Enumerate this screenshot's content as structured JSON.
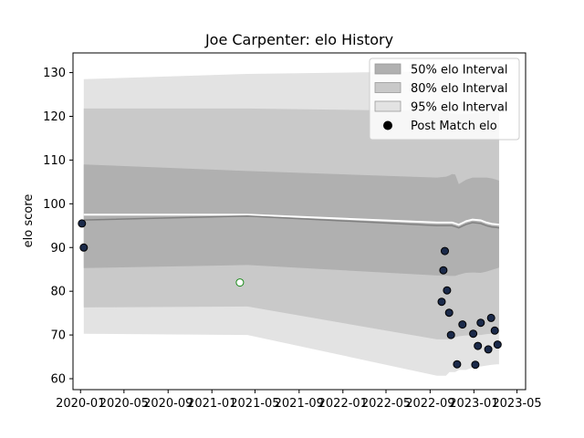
{
  "chart_data": {
    "type": "line",
    "title": "Joe Carpenter: elo History",
    "xlabel": "",
    "ylabel": "elo score",
    "xlim": [
      "2019-12-11",
      "2023-05-25"
    ],
    "ylim": [
      57.5,
      134.5
    ],
    "x_ticks": [
      "2020-01",
      "2020-05",
      "2020-09",
      "2021-01",
      "2021-05",
      "2021-09",
      "2022-01",
      "2022-05",
      "2022-09",
      "2023-01",
      "2023-05"
    ],
    "y_ticks": [
      60,
      70,
      80,
      90,
      100,
      110,
      120,
      130
    ],
    "grid": false,
    "legend": {
      "placement": "top-right",
      "entries": [
        {
          "label": "50% elo Interval",
          "color": "#b0b0b0"
        },
        {
          "label": "80% elo Interval",
          "color": "#c9c9c9"
        },
        {
          "label": "95% elo Interval",
          "color": "#e3e3e3"
        },
        {
          "label": "Post Match elo",
          "color": "#000000"
        }
      ]
    },
    "band_x": [
      "2020-01-10",
      "2021-04-10",
      "2022-09-20",
      "2022-10-15",
      "2022-10-25",
      "2022-11-01",
      "2022-11-10",
      "2022-11-20",
      "2022-12-10",
      "2022-12-28",
      "2023-01-20",
      "2023-02-05",
      "2023-02-20",
      "2023-03-05",
      "2023-03-12"
    ],
    "series": [
      {
        "role": "mean",
        "color": "#808080",
        "values": [
          96.3,
          97.2,
          95.0,
          95.0,
          95.0,
          95.0,
          94.8,
          94.5,
          95.3,
          95.7,
          95.5,
          95.0,
          94.7,
          94.6,
          94.5
        ]
      },
      {
        "role": "upper-offset",
        "color": "#ffffff",
        "values": [
          97.5,
          97.5,
          95.7,
          95.7,
          95.7,
          95.7,
          95.5,
          95.2,
          96.0,
          96.4,
          96.2,
          95.7,
          95.4,
          95.3,
          95.2
        ]
      },
      {
        "role": "band50-upper",
        "color": "#b0b0b0",
        "values": [
          109.0,
          107.5,
          106.0,
          106.2,
          106.5,
          106.8,
          106.7,
          104.5,
          105.5,
          106.0,
          106.0,
          106.0,
          105.8,
          105.5,
          105.3
        ]
      },
      {
        "role": "band50-lower",
        "color": "#b0b0b0",
        "values": [
          85.3,
          86.0,
          83.6,
          83.6,
          83.5,
          83.5,
          83.5,
          83.8,
          84.2,
          84.3,
          84.2,
          84.5,
          84.9,
          85.2,
          85.4
        ]
      },
      {
        "role": "band80-upper",
        "color": "#c9c9c9",
        "values": [
          121.8,
          121.8,
          121.2,
          121.0,
          120.8,
          120.6,
          120.5,
          120.5,
          120.5,
          120.6,
          120.8,
          121.0,
          121.3,
          121.4,
          121.5
        ]
      },
      {
        "role": "band80-lower",
        "color": "#c9c9c9",
        "values": [
          76.3,
          76.5,
          69.0,
          69.0,
          69.0,
          69.2,
          69.5,
          69.7,
          69.9,
          70.0,
          70.0,
          70.2,
          70.3,
          70.4,
          70.5
        ]
      },
      {
        "role": "band95-upper",
        "color": "#e3e3e3",
        "values": [
          128.5,
          129.7,
          130.3,
          130.3,
          130.3,
          130.3,
          130.3,
          130.3,
          130.3,
          130.3,
          130.3,
          130.3,
          130.3,
          130.3,
          130.3
        ]
      },
      {
        "role": "band95-lower",
        "color": "#e3e3e3",
        "values": [
          70.3,
          70.0,
          60.7,
          60.7,
          61.5,
          61.5,
          61.5,
          62.0,
          62.0,
          62.5,
          62.8,
          63.0,
          63.2,
          63.3,
          63.3
        ]
      }
    ],
    "points": [
      {
        "x": "2020-01-05",
        "y": 95.5,
        "fill": "#1b2a4a",
        "stroke": "#000000"
      },
      {
        "x": "2020-01-10",
        "y": 90.0,
        "fill": "#1b2a4a",
        "stroke": "#000000"
      },
      {
        "x": "2021-03-20",
        "y": 82.0,
        "fill": "#ffffff",
        "stroke": "#1a8a1a"
      },
      {
        "x": "2022-10-03",
        "y": 77.6,
        "fill": "#1b2a4a",
        "stroke": "#000000"
      },
      {
        "x": "2022-10-08",
        "y": 84.8,
        "fill": "#1b2a4a",
        "stroke": "#000000"
      },
      {
        "x": "2022-10-12",
        "y": 89.2,
        "fill": "#1b2a4a",
        "stroke": "#000000"
      },
      {
        "x": "2022-10-18",
        "y": 80.2,
        "fill": "#1b2a4a",
        "stroke": "#000000"
      },
      {
        "x": "2022-10-24",
        "y": 75.1,
        "fill": "#1b2a4a",
        "stroke": "#000000"
      },
      {
        "x": "2022-10-29",
        "y": 70.0,
        "fill": "#1b2a4a",
        "stroke": "#000000"
      },
      {
        "x": "2022-11-15",
        "y": 63.3,
        "fill": "#1b2a4a",
        "stroke": "#000000"
      },
      {
        "x": "2022-11-30",
        "y": 72.4,
        "fill": "#1b2a4a",
        "stroke": "#000000"
      },
      {
        "x": "2022-12-30",
        "y": 70.3,
        "fill": "#1b2a4a",
        "stroke": "#000000"
      },
      {
        "x": "2023-01-05",
        "y": 63.2,
        "fill": "#1b2a4a",
        "stroke": "#000000"
      },
      {
        "x": "2023-01-12",
        "y": 67.5,
        "fill": "#1b2a4a",
        "stroke": "#000000"
      },
      {
        "x": "2023-01-20",
        "y": 72.8,
        "fill": "#1b2a4a",
        "stroke": "#000000"
      },
      {
        "x": "2023-02-10",
        "y": 66.7,
        "fill": "#1b2a4a",
        "stroke": "#000000"
      },
      {
        "x": "2023-02-18",
        "y": 73.9,
        "fill": "#1b2a4a",
        "stroke": "#000000"
      },
      {
        "x": "2023-02-28",
        "y": 71.0,
        "fill": "#1b2a4a",
        "stroke": "#000000"
      },
      {
        "x": "2023-03-08",
        "y": 67.8,
        "fill": "#1b2a4a",
        "stroke": "#000000"
      }
    ]
  }
}
